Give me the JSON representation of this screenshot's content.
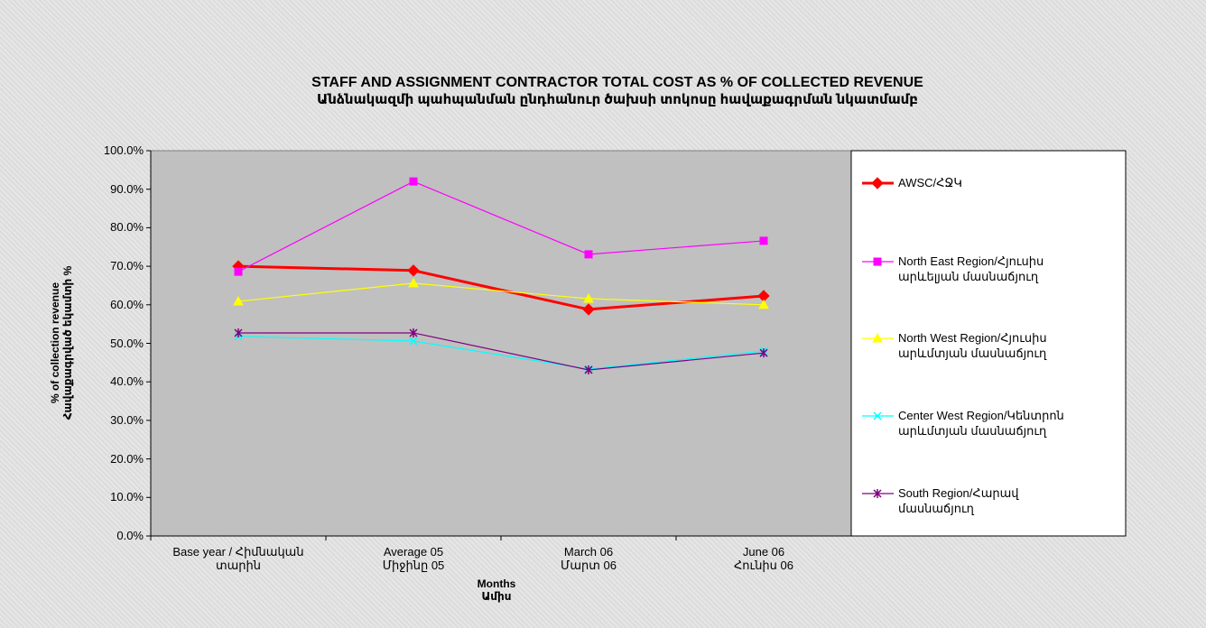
{
  "chart_data": {
    "type": "line",
    "title": "STAFF AND ASSIGNMENT CONTRACTOR TOTAL COST AS % OF COLLECTED REVENUE",
    "subtitle": "Անձնակազմի պահպանման ընդհանուր ծախսի տոկոսը հավաքագրման  նկատմամբ",
    "x_label": "Months\nԱմիս",
    "y_label": "% of collection revenue\nՀավաքագրված եկամտի %",
    "categories": [
      "Base year / Հիմնական\nտարին",
      "Average 05\nՄիջինը 05",
      "March 06\nՄարտ 06",
      "June 06\nՀունիս 06"
    ],
    "series": [
      {
        "name": "AWSC/ՀՋԿ",
        "color": "#ff0000",
        "marker": "diamond",
        "values": [
          70.0,
          68.9,
          58.8,
          62.3
        ]
      },
      {
        "name": "North East Region/Հյուսիս\nարևելյան մասնաճյուղ",
        "color": "#ff00ff",
        "marker": "square",
        "values": [
          68.6,
          92.0,
          73.1,
          76.6
        ]
      },
      {
        "name": "North West Region/Հյուսիս\nարևմտյան մասնաճյուղ",
        "color": "#ffff00",
        "marker": "triangle",
        "values": [
          60.9,
          65.6,
          61.6,
          60.0
        ]
      },
      {
        "name": "Center West Region/Կենտրոն\nարևմտյան մասնաճյուղ",
        "color": "#00ffff",
        "marker": "x",
        "values": [
          51.8,
          50.6,
          43.3,
          48.0
        ]
      },
      {
        "name": "South Region/Հարավ\nմասնաճյուղ",
        "color": "#800080",
        "marker": "star",
        "values": [
          52.7,
          52.7,
          43.1,
          47.5
        ]
      }
    ],
    "ylim": [
      0,
      100
    ],
    "yticks": [
      {
        "value": 0,
        "label": "0.0%"
      },
      {
        "value": 10,
        "label": "10.0%"
      },
      {
        "value": 20,
        "label": "20.0%"
      },
      {
        "value": 30,
        "label": "30.0%"
      },
      {
        "value": 40,
        "label": "40.0%"
      },
      {
        "value": 50,
        "label": "50.0%"
      },
      {
        "value": 60,
        "label": "60.0%"
      },
      {
        "value": 70,
        "label": "70.0%"
      },
      {
        "value": 80,
        "label": "80.0%"
      },
      {
        "value": 90,
        "label": "90.0%"
      },
      {
        "value": 100,
        "label": "100.0%"
      }
    ],
    "grid": false,
    "legend": "right"
  }
}
